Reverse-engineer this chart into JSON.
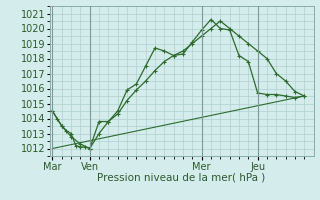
{
  "xlabel": "Pression niveau de la mer( hPa )",
  "background_color": "#d4ecec",
  "grid_color": "#b0d0d0",
  "line_color": "#2d6b2d",
  "vline_color": "#7a9a9a",
  "ylim": [
    1011.5,
    1021.5
  ],
  "yticks": [
    1012,
    1013,
    1014,
    1015,
    1016,
    1017,
    1018,
    1019,
    1020,
    1021
  ],
  "day_labels": [
    "Mar",
    "Ven",
    "Mer",
    "Jeu"
  ],
  "day_positions": [
    0,
    4,
    16,
    22
  ],
  "xlim": [
    -0.3,
    28.0
  ],
  "line1_x": [
    0,
    0.5,
    1,
    1.5,
    2,
    2.5,
    3,
    3.5,
    4,
    5,
    6,
    7,
    8,
    9,
    10,
    11,
    12,
    13,
    14,
    15,
    16,
    17,
    18,
    19,
    20,
    21,
    22,
    23,
    24,
    25,
    26,
    27
  ],
  "line1_y": [
    1014.5,
    1014.0,
    1013.5,
    1013.2,
    1013.0,
    1012.2,
    1012.1,
    1012.1,
    1012.0,
    1013.8,
    1013.8,
    1014.5,
    1015.9,
    1016.3,
    1017.5,
    1018.7,
    1018.5,
    1018.2,
    1018.3,
    1019.1,
    1019.9,
    1020.6,
    1020.0,
    1019.9,
    1018.2,
    1017.8,
    1015.7,
    1015.6,
    1015.6,
    1015.5,
    1015.4,
    1015.5
  ],
  "line2_x": [
    0,
    1,
    2,
    3,
    4,
    5,
    6,
    7,
    8,
    9,
    10,
    11,
    12,
    13,
    14,
    15,
    16,
    17,
    18,
    19,
    20,
    21,
    22,
    23,
    24,
    25,
    26,
    27
  ],
  "line2_y": [
    1014.5,
    1013.5,
    1012.8,
    1012.3,
    1012.0,
    1013.0,
    1013.8,
    1014.3,
    1015.2,
    1015.9,
    1016.5,
    1017.2,
    1017.8,
    1018.2,
    1018.5,
    1019.0,
    1019.5,
    1020.0,
    1020.5,
    1020.0,
    1019.5,
    1019.0,
    1018.5,
    1018.0,
    1017.0,
    1016.5,
    1015.8,
    1015.5
  ],
  "line3_x": [
    0,
    27
  ],
  "line3_y": [
    1012.0,
    1015.5
  ]
}
